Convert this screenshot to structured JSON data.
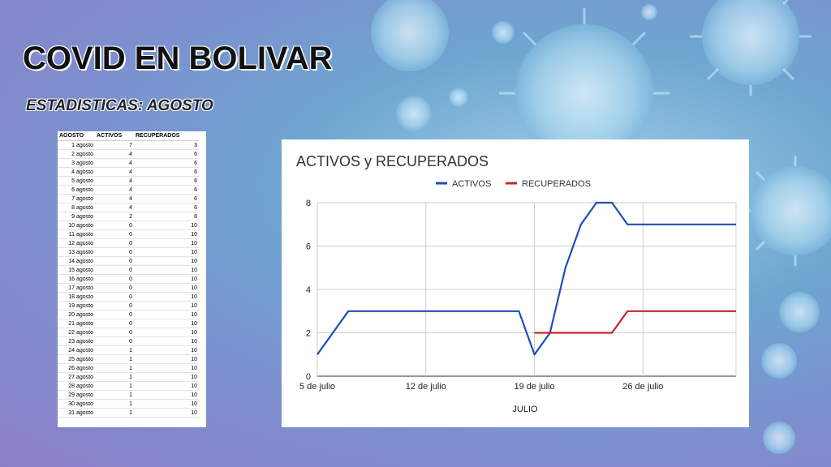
{
  "slide": {
    "title": "COVID EN BOLIVAR",
    "subtitle": "ESTADISTICAS: AGOSTO"
  },
  "table": {
    "headers": [
      "AGOSTO",
      "ACTIVOS",
      "RECUPERADOS"
    ],
    "rows": [
      [
        "1 agosto",
        "7",
        "3"
      ],
      [
        "2 agosto",
        "4",
        "6"
      ],
      [
        "3 agosto",
        "4",
        "6"
      ],
      [
        "4 agosto",
        "4",
        "6"
      ],
      [
        "5 agosto",
        "4",
        "6"
      ],
      [
        "6 agosto",
        "4",
        "6"
      ],
      [
        "7 agosto",
        "4",
        "6"
      ],
      [
        "8 agosto",
        "4",
        "6"
      ],
      [
        "9 agosto",
        "2",
        "8"
      ],
      [
        "10 agosto",
        "0",
        "10"
      ],
      [
        "11 agosto",
        "0",
        "10"
      ],
      [
        "12 agosto",
        "0",
        "10"
      ],
      [
        "13 agosto",
        "0",
        "10"
      ],
      [
        "14 agosto",
        "0",
        "10"
      ],
      [
        "15 agosto",
        "0",
        "10"
      ],
      [
        "16 agosto",
        "0",
        "10"
      ],
      [
        "17 agosto",
        "0",
        "10"
      ],
      [
        "18 agosto",
        "0",
        "10"
      ],
      [
        "19 agosto",
        "0",
        "10"
      ],
      [
        "20 agosto",
        "0",
        "10"
      ],
      [
        "21 agosto",
        "0",
        "10"
      ],
      [
        "22 agosto",
        "0",
        "10"
      ],
      [
        "23 agosto",
        "0",
        "10"
      ],
      [
        "24 agosto",
        "1",
        "10"
      ],
      [
        "25 agosto",
        "1",
        "10"
      ],
      [
        "26 agosto",
        "1",
        "10"
      ],
      [
        "27 agosto",
        "1",
        "10"
      ],
      [
        "28 agosto",
        "1",
        "10"
      ],
      [
        "29 agosto",
        "1",
        "10"
      ],
      [
        "30 agosto",
        "1",
        "10"
      ],
      [
        "31 agosto",
        "1",
        "10"
      ]
    ]
  },
  "chart_data": {
    "type": "line",
    "title": "ACTIVOS y RECUPERADOS",
    "xlabel": "JULIO",
    "ylabel": "",
    "ylim": [
      0,
      8
    ],
    "xlim": [
      "2020-07-05",
      "2020-08-01"
    ],
    "yticks": [
      0,
      2,
      4,
      6,
      8
    ],
    "xticks": [
      {
        "date": "2020-07-05",
        "label": "5 de julio"
      },
      {
        "date": "2020-07-12",
        "label": "12 de julio"
      },
      {
        "date": "2020-07-19",
        "label": "19 de julio"
      },
      {
        "date": "2020-07-26",
        "label": "26 de julio"
      }
    ],
    "grid": true,
    "legend": "top-center",
    "series": [
      {
        "name": "ACTIVOS",
        "color": "#1f4fb5",
        "points": [
          [
            "2020-07-05",
            1
          ],
          [
            "2020-07-07",
            3
          ],
          [
            "2020-07-18",
            3
          ],
          [
            "2020-07-19",
            1
          ],
          [
            "2020-07-20",
            2
          ],
          [
            "2020-07-21",
            5
          ],
          [
            "2020-07-22",
            7
          ],
          [
            "2020-07-23",
            8
          ],
          [
            "2020-07-24",
            8
          ],
          [
            "2020-07-25",
            7
          ],
          [
            "2020-08-01",
            7
          ]
        ]
      },
      {
        "name": "RECUPERADOS",
        "color": "#c62828",
        "points": [
          [
            "2020-07-19",
            2
          ],
          [
            "2020-07-24",
            2
          ],
          [
            "2020-07-25",
            3
          ],
          [
            "2020-08-01",
            3
          ]
        ]
      }
    ]
  }
}
